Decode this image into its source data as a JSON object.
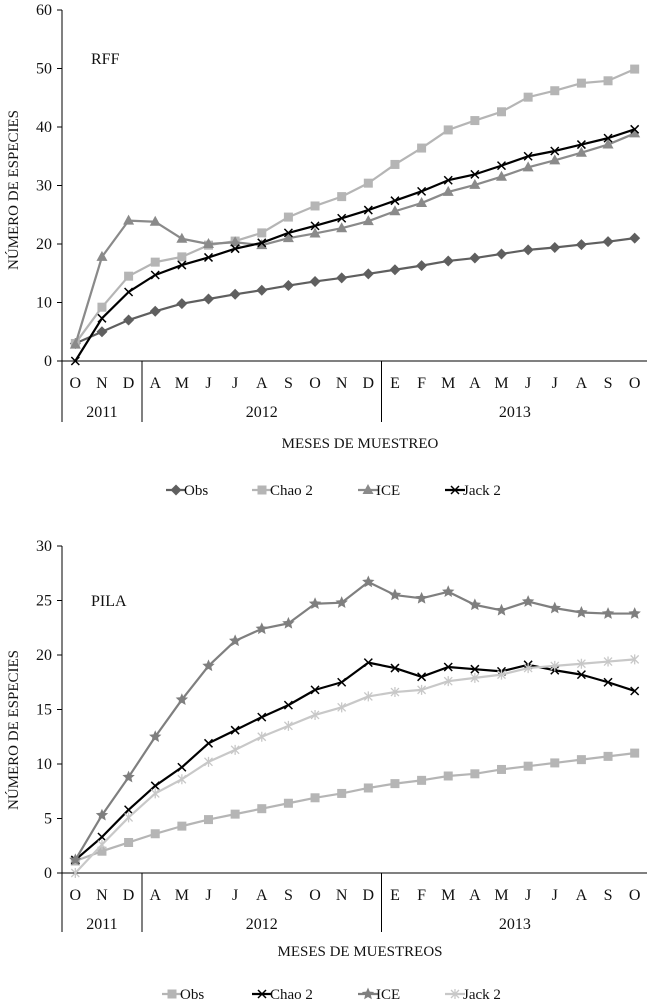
{
  "chart_data": [
    {
      "type": "line",
      "panel_label": "RFF",
      "xlabel": "MESES DE MUESTREO",
      "ylabel": "NÚMERO DE ESPECIES",
      "ylim": [
        0,
        60
      ],
      "yticks": [
        "0",
        "10",
        "20",
        "30",
        "40",
        "50",
        "60"
      ],
      "categories": [
        "O",
        "N",
        "D",
        "A",
        "M",
        "J",
        "J",
        "A",
        "S",
        "O",
        "N",
        "D",
        "E",
        "F",
        "M",
        "A",
        "M",
        "J",
        "J",
        "A",
        "S",
        "O"
      ],
      "year_groups": [
        {
          "label": "2011",
          "count": 3
        },
        {
          "label": "2012",
          "count": 9
        },
        {
          "label": "2013",
          "count": 10
        }
      ],
      "series": [
        {
          "name": "Obs",
          "color": "#5f5f5f",
          "marker": "diamond",
          "values": [
            3,
            5,
            7,
            8.5,
            9.8,
            10.6,
            11.4,
            12.1,
            12.9,
            13.6,
            14.2,
            14.9,
            15.6,
            16.3,
            17.1,
            17.6,
            18.3,
            19,
            19.4,
            19.9,
            20.4,
            21
          ]
        },
        {
          "name": "Chao 2",
          "color": "#b5b5b5",
          "marker": "square",
          "values": [
            3,
            9.2,
            14.5,
            16.9,
            17.8,
            19.8,
            20.5,
            21.9,
            24.6,
            26.5,
            28.1,
            30.4,
            33.6,
            36.4,
            39.5,
            41.1,
            42.6,
            45.1,
            46.2,
            47.5,
            47.9,
            49.9
          ]
        },
        {
          "name": "ICE",
          "color": "#8a8a8a",
          "marker": "triangle",
          "values": [
            2.8,
            17.8,
            24,
            23.8,
            20.9,
            20,
            20.3,
            19.8,
            21,
            21.8,
            22.7,
            23.9,
            25.6,
            27,
            28.9,
            30.1,
            31.5,
            33.1,
            34.3,
            35.6,
            37,
            38.9
          ]
        },
        {
          "name": "Jack 2",
          "color": "#000000",
          "marker": "x",
          "values": [
            0,
            7.3,
            11.8,
            14.7,
            16.4,
            17.7,
            19.2,
            20.2,
            21.9,
            23.1,
            24.4,
            25.8,
            27.4,
            29,
            30.9,
            31.9,
            33.4,
            35,
            35.9,
            37,
            38.1,
            39.6
          ]
        }
      ]
    },
    {
      "type": "line",
      "panel_label": "PILA",
      "xlabel": "MESES DE MUESTREOS",
      "ylabel": "NÚMERO DE ESPECIES",
      "ylim": [
        0,
        30
      ],
      "yticks": [
        "0",
        "5",
        "10",
        "15",
        "20",
        "25",
        "30"
      ],
      "categories": [
        "O",
        "N",
        "D",
        "A",
        "M",
        "J",
        "J",
        "A",
        "S",
        "O",
        "N",
        "D",
        "E",
        "F",
        "M",
        "A",
        "M",
        "J",
        "J",
        "A",
        "S",
        "O"
      ],
      "year_groups": [
        {
          "label": "2011",
          "count": 3
        },
        {
          "label": "2012",
          "count": 9
        },
        {
          "label": "2013",
          "count": 10
        }
      ],
      "series": [
        {
          "name": "Obs",
          "color": "#b5b5b5",
          "marker": "square",
          "values": [
            1.1,
            2,
            2.8,
            3.6,
            4.3,
            4.9,
            5.4,
            5.9,
            6.4,
            6.9,
            7.3,
            7.8,
            8.2,
            8.5,
            8.9,
            9.1,
            9.5,
            9.8,
            10.1,
            10.4,
            10.7,
            11
          ]
        },
        {
          "name": "Chao 2",
          "color": "#000000",
          "marker": "x",
          "values": [
            1.2,
            3.3,
            5.8,
            8,
            9.7,
            11.9,
            13.1,
            14.3,
            15.4,
            16.8,
            17.5,
            19.3,
            18.8,
            18,
            18.9,
            18.7,
            18.5,
            19.1,
            18.6,
            18.2,
            17.5,
            16.7
          ]
        },
        {
          "name": "ICE",
          "color": "#7f7f7f",
          "marker": "star",
          "values": [
            1.2,
            5.3,
            8.8,
            12.5,
            15.9,
            19,
            21.3,
            22.4,
            22.9,
            24.7,
            24.8,
            26.7,
            25.5,
            25.2,
            25.8,
            24.6,
            24.1,
            24.9,
            24.3,
            23.9,
            23.8,
            23.8
          ]
        },
        {
          "name": "Jack 2",
          "color": "#c8c8c8",
          "marker": "asterisk",
          "values": [
            0,
            2.6,
            5.1,
            7.3,
            8.6,
            10.2,
            11.3,
            12.5,
            13.5,
            14.5,
            15.2,
            16.2,
            16.6,
            16.8,
            17.6,
            17.9,
            18.2,
            18.8,
            19,
            19.2,
            19.4,
            19.6
          ]
        }
      ]
    }
  ]
}
